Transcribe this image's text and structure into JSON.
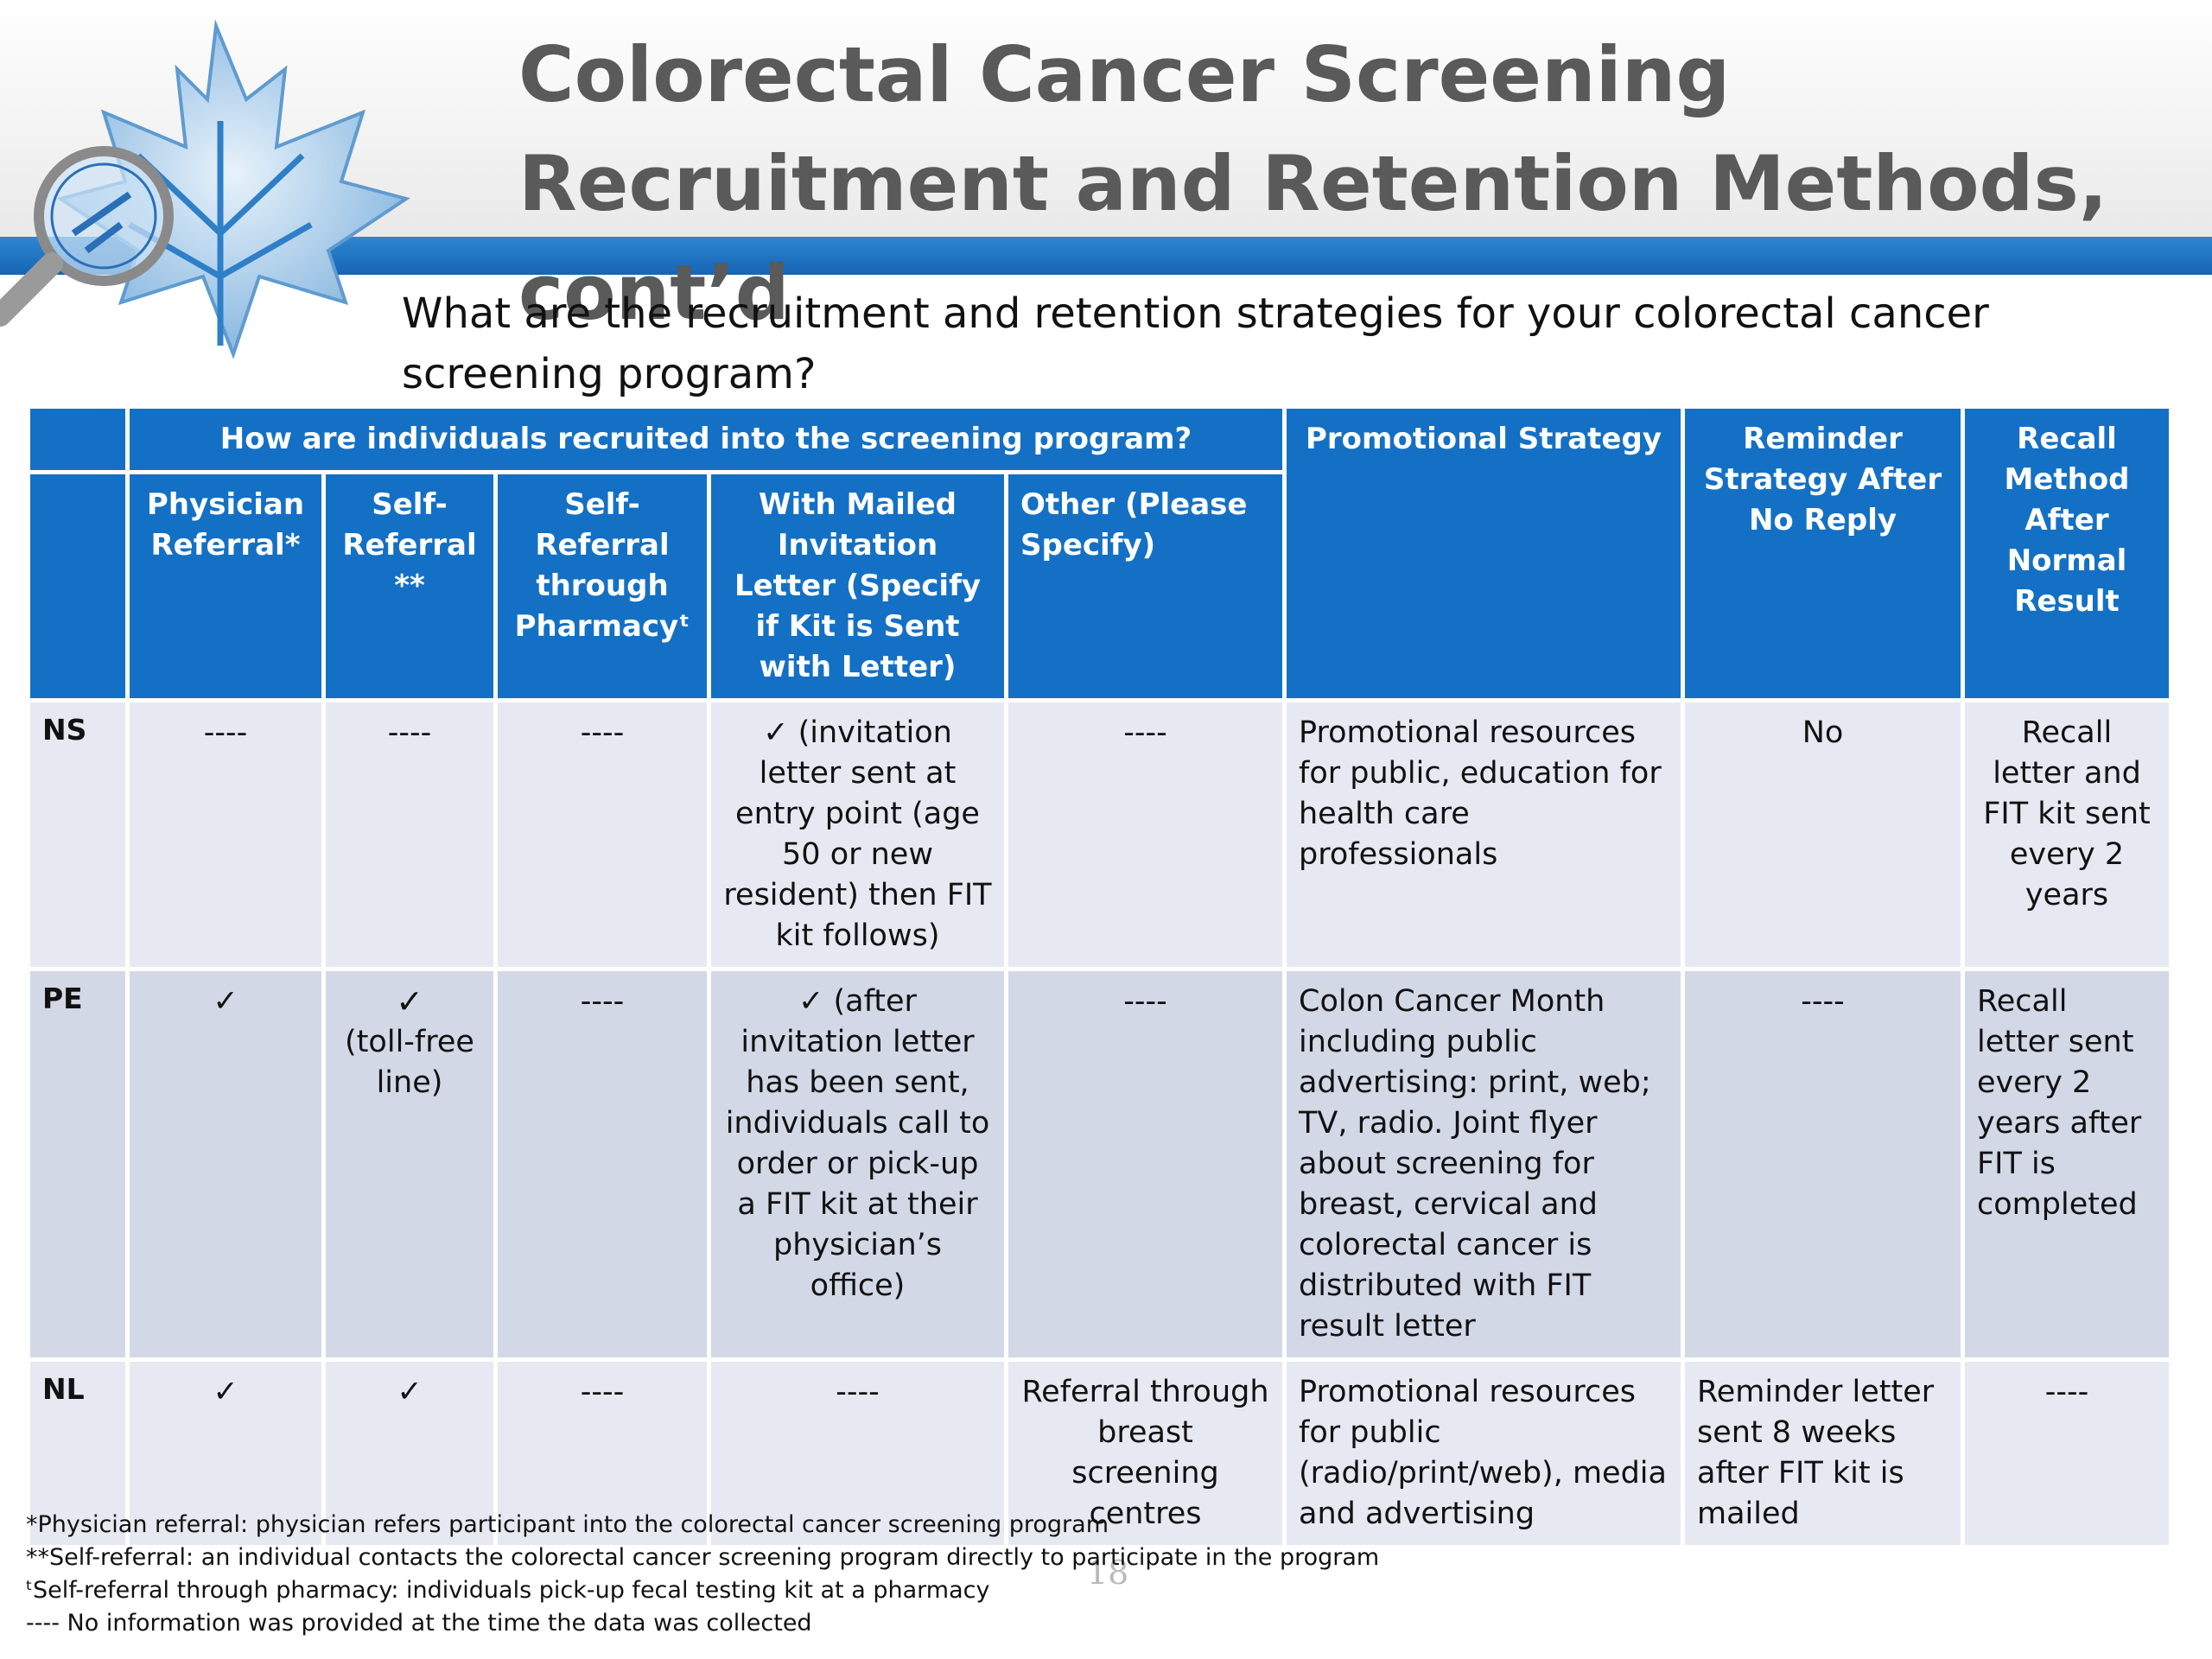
{
  "slide": {
    "title": "Colorectal Cancer Screening Recruitment and Retention Methods, cont’d",
    "question": "What are the recruitment and retention strategies for your colorectal cancer screening program?",
    "page_number": "18",
    "colors": {
      "header_blue": "#1470c4",
      "band_blue": "#1565b4",
      "row_light": "#e6e9f1",
      "row_dark": "#d3d8e6",
      "title_gray": "#5a5a5a"
    }
  },
  "table": {
    "group_header": "How are individuals recruited into the screening program?",
    "headers": {
      "physician": "Physician Referral*",
      "self": "Self-Referral **",
      "pharmacy": "Self-Referral through Pharmacyᵗ",
      "mailed": "With Mailed Invitation Letter (Specify if Kit is Sent with Letter)",
      "other": "Other (Please Specify)",
      "promo": "Promotional Strategy",
      "reminder": "Reminder Strategy After No Reply",
      "recall": "Recall Method After Normal Result"
    },
    "rows": [
      {
        "province": "NS",
        "physician": "----",
        "self": "----",
        "pharmacy": "----",
        "mailed": "✓ (invitation letter sent at entry point (age 50 or new resident) then FIT kit follows)",
        "other": "----",
        "promo": "Promotional resources for public, education for health care professionals",
        "reminder": "No",
        "recall": "Recall letter and FIT kit sent every 2 years"
      },
      {
        "province": "PE",
        "physician": "✓",
        "self": "✓",
        "self_note": "(toll-free line)",
        "pharmacy": "----",
        "mailed": "✓ (after invitation letter has been sent, individuals call to order or pick-up a FIT kit at their physician’s office)",
        "other": "----",
        "promo": "Colon Cancer Month including public advertising: print, web; TV, radio. Joint flyer about screening for breast, cervical and colorectal cancer is distributed with FIT result letter",
        "reminder": "----",
        "recall": "Recall letter sent every 2 years after  FIT is completed"
      },
      {
        "province": "NL",
        "physician": "✓",
        "self": "✓",
        "pharmacy": "----",
        "mailed": "----",
        "other": "Referral through breast screening centres",
        "promo": "Promotional resources for public (radio/print/web), media and advertising",
        "reminder": "Reminder letter sent 8 weeks after FIT kit is mailed",
        "recall": "----"
      }
    ]
  },
  "footnotes": [
    "*Physician referral: physician refers participant into the colorectal cancer screening program",
    "**Self-referral: an individual contacts the colorectal cancer screening program directly to participate in the program",
    "ᵗSelf-referral through pharmacy: individuals pick-up fecal testing kit at a pharmacy",
    "---- No information was provided at the time the data was collected"
  ]
}
